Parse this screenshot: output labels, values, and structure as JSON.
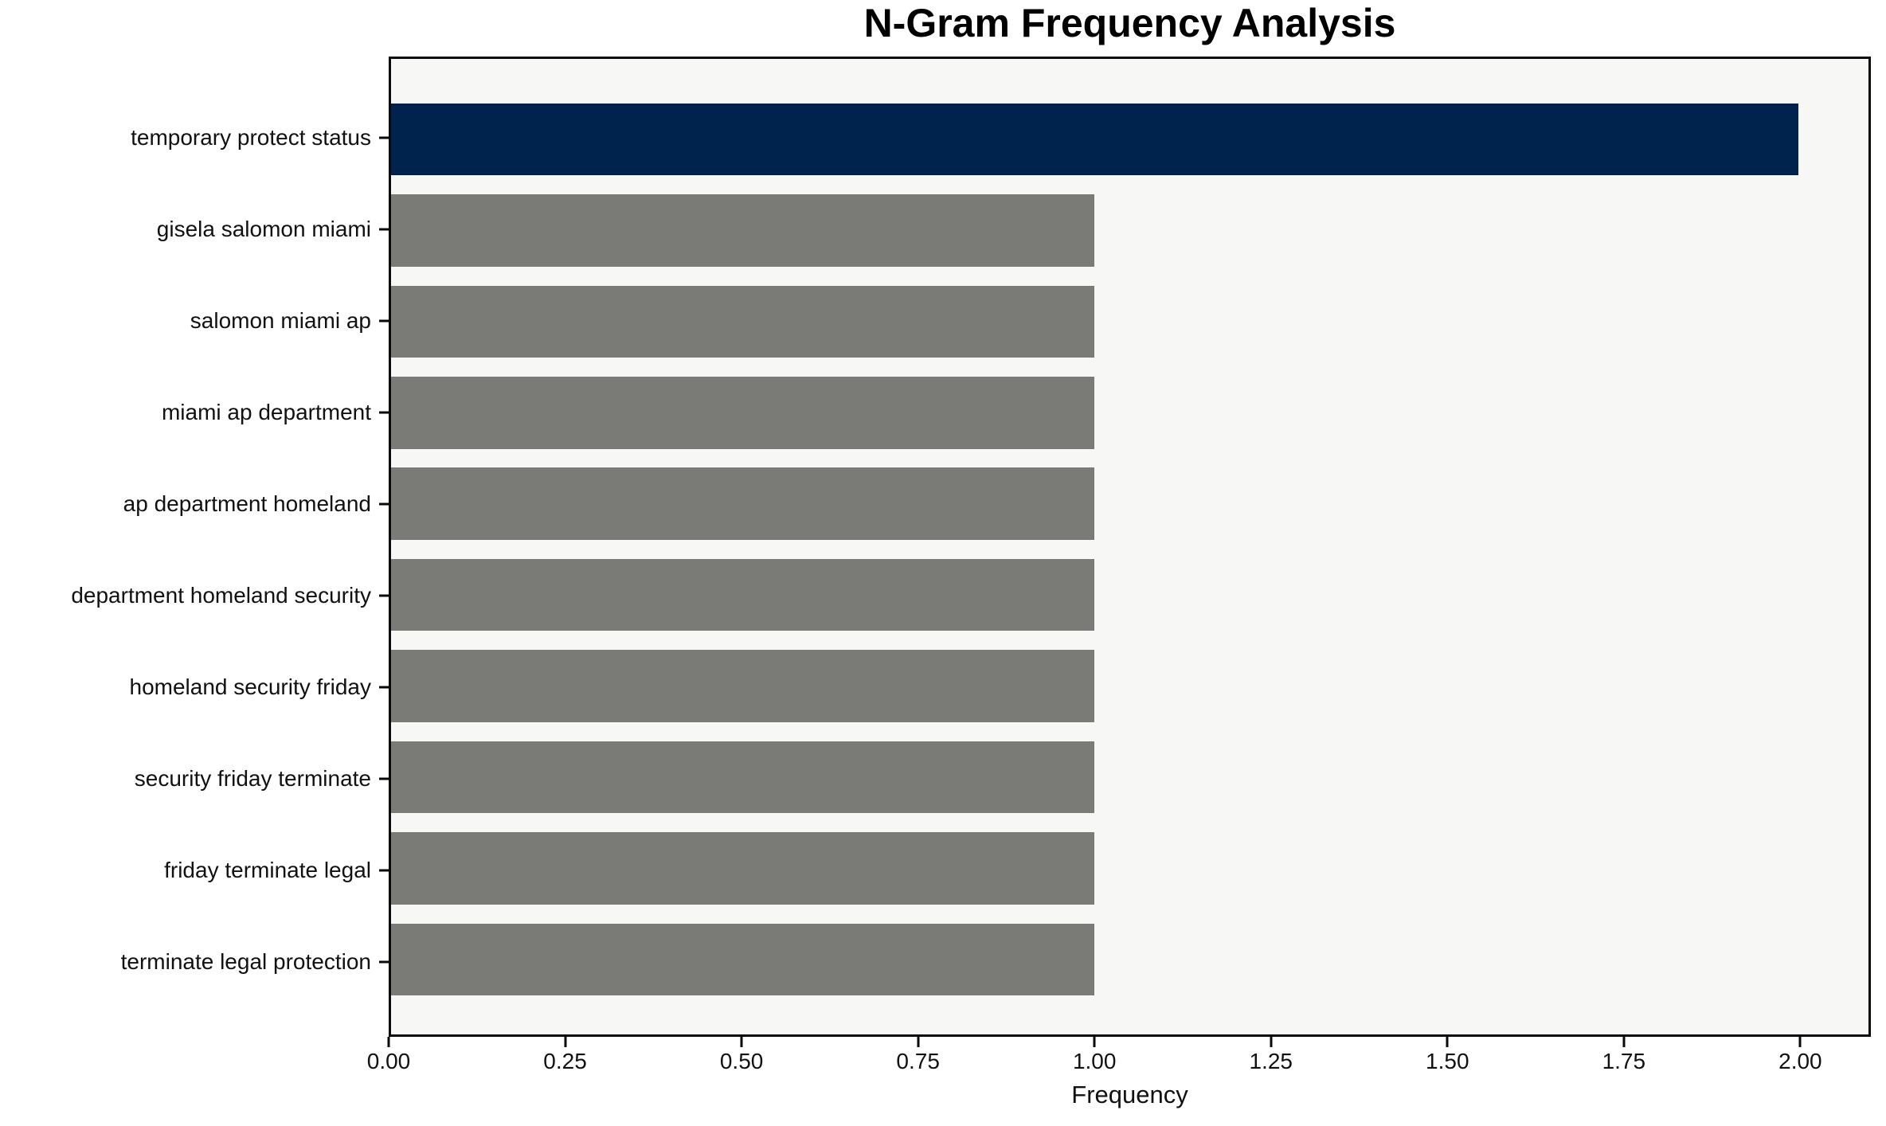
{
  "figure": {
    "title": "N-Gram Frequency Analysis",
    "xlabel": "Frequency"
  },
  "colors": {
    "highlight_bar": "#00234e",
    "default_bar": "#7a7a77",
    "plot_background": "#f7f7f6",
    "page_background": "#ffffff",
    "spine": "#0a0a0a",
    "text": "#111111"
  },
  "chart_data": {
    "type": "bar",
    "orientation": "horizontal",
    "title": "N-Gram Frequency Analysis",
    "xlabel": "Frequency",
    "ylabel": "",
    "categories": [
      "temporary protect status",
      "gisela salomon miami",
      "salomon miami ap",
      "miami ap department",
      "ap department homeland",
      "department homeland security",
      "homeland security friday",
      "security friday terminate",
      "friday terminate legal",
      "terminate legal protection"
    ],
    "values": [
      2,
      1,
      1,
      1,
      1,
      1,
      1,
      1,
      1,
      1
    ],
    "bar_colors": [
      "#00234e",
      "#7a7a77",
      "#7a7a77",
      "#7a7a77",
      "#7a7a77",
      "#7a7a77",
      "#7a7a77",
      "#7a7a77",
      "#7a7a77",
      "#7a7a77"
    ],
    "xlim": [
      0,
      2.1
    ],
    "xticks": [
      0,
      0.25,
      0.5,
      0.75,
      1.0,
      1.25,
      1.5,
      1.75,
      2.0
    ],
    "xtick_labels": [
      "0.00",
      "0.25",
      "0.50",
      "0.75",
      "1.00",
      "1.25",
      "1.50",
      "1.75",
      "2.00"
    ],
    "grid": false,
    "legend": "none"
  }
}
